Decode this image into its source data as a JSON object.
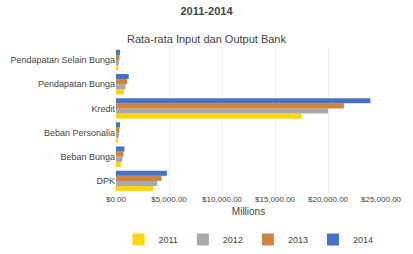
{
  "chart_data": {
    "type": "bar",
    "orientation": "horizontal",
    "title": "Rata-rata Input dan Output Bank",
    "subtitle": "2011-2014",
    "xlabel": "Millions",
    "categories": [
      "DPK",
      "Beban Bunga",
      "Beban Personalia",
      "Kredit",
      "Pendapatan Bunga",
      "Pendapatan Selain Bunga"
    ],
    "series": [
      {
        "name": "2011",
        "color": "#FFD700",
        "values": [
          3500,
          450,
          200,
          17500,
          750,
          200
        ]
      },
      {
        "name": "2012",
        "color": "#A9A9A9",
        "values": [
          3900,
          600,
          280,
          20000,
          900,
          280
        ]
      },
      {
        "name": "2013",
        "color": "#CD853F",
        "values": [
          4300,
          700,
          320,
          21500,
          1050,
          330
        ]
      },
      {
        "name": "2014",
        "color": "#4472C4",
        "values": [
          4800,
          800,
          380,
          24000,
          1200,
          380
        ]
      }
    ],
    "xlim": [
      0,
      25000
    ],
    "xticks": [
      {
        "value": 0,
        "label": "$0.00"
      },
      {
        "value": 5000,
        "label": "$5,000.00"
      },
      {
        "value": 10000,
        "label": "$10,000.00"
      },
      {
        "value": 15000,
        "label": "$15,000.00"
      },
      {
        "value": 20000,
        "label": "$20,000.00"
      },
      {
        "value": 25000,
        "label": "$25,000.00"
      }
    ],
    "grid": true,
    "legend": "bottom"
  }
}
